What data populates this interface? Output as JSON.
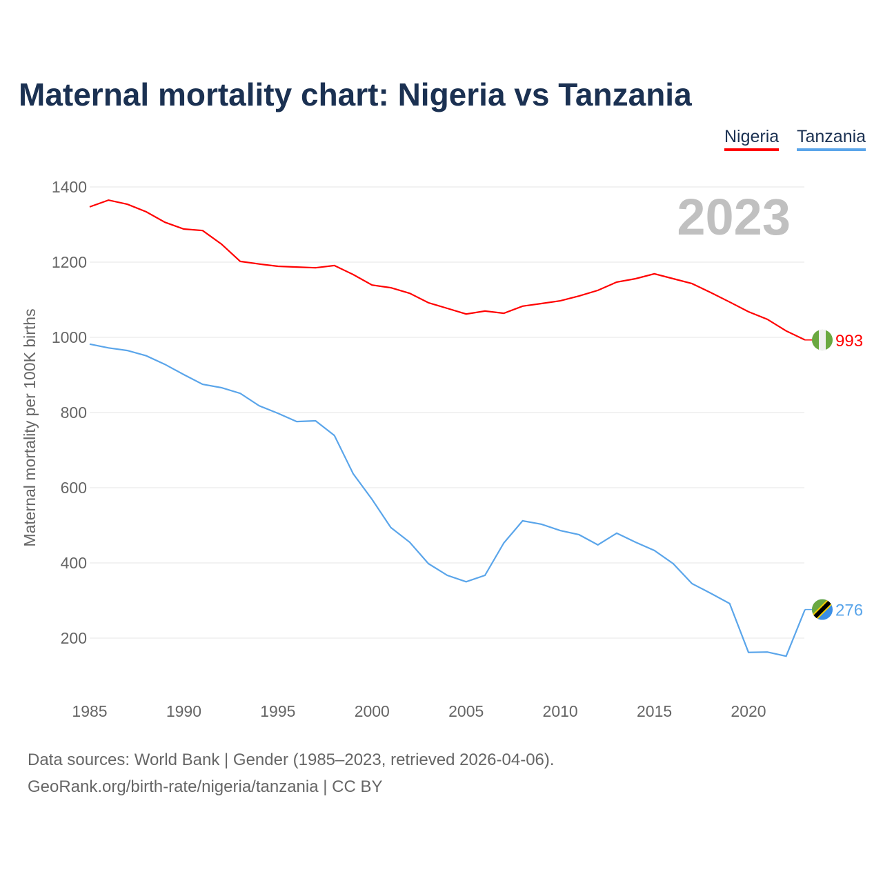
{
  "chart_data": {
    "type": "line",
    "title": "Maternal mortality chart: Nigeria vs Tanzania",
    "ylabel": "Maternal mortality per 100K births",
    "xlabel": "",
    "year_label": "2023",
    "ylim": [
      80,
      1400
    ],
    "xlim": [
      1985,
      2023
    ],
    "yticks": [
      200,
      400,
      600,
      800,
      1000,
      1200,
      1400
    ],
    "xticks": [
      1985,
      1990,
      1995,
      2000,
      2005,
      2010,
      2015,
      2020
    ],
    "grid": true,
    "legend_position": "top-right",
    "x": [
      1985,
      1986,
      1987,
      1988,
      1989,
      1990,
      1991,
      1992,
      1993,
      1994,
      1995,
      1996,
      1997,
      1998,
      1999,
      2000,
      2001,
      2002,
      2003,
      2004,
      2005,
      2006,
      2007,
      2008,
      2009,
      2010,
      2011,
      2012,
      2013,
      2014,
      2015,
      2016,
      2017,
      2018,
      2019,
      2020,
      2021,
      2022,
      2023
    ],
    "series": [
      {
        "name": "Nigeria",
        "color": "#ff0000",
        "end_label": "993",
        "values": [
          1347,
          1365,
          1354,
          1334,
          1306,
          1288,
          1284,
          1248,
          1202,
          1195,
          1189,
          1187,
          1185,
          1191,
          1167,
          1139,
          1132,
          1117,
          1092,
          1077,
          1062,
          1070,
          1064,
          1083,
          1090,
          1097,
          1110,
          1125,
          1147,
          1156,
          1169,
          1156,
          1143,
          1119,
          1094,
          1068,
          1048,
          1017,
          993
        ]
      },
      {
        "name": "Tanzania",
        "color": "#5aa5ea",
        "end_label": "276",
        "values": [
          982,
          972,
          965,
          951,
          928,
          901,
          875,
          866,
          851,
          818,
          798,
          776,
          778,
          739,
          637,
          569,
          494,
          455,
          398,
          367,
          350,
          367,
          453,
          512,
          503,
          486,
          475,
          448,
          479,
          455,
          433,
          398,
          345,
          319,
          292,
          162,
          163,
          152,
          276
        ]
      }
    ]
  },
  "footer": {
    "line1": "Data sources: World Bank | Gender (1985–2023, retrieved 2026-04-06).",
    "line2": "GeoRank.org/birth-rate/nigeria/tanzania | CC BY"
  }
}
